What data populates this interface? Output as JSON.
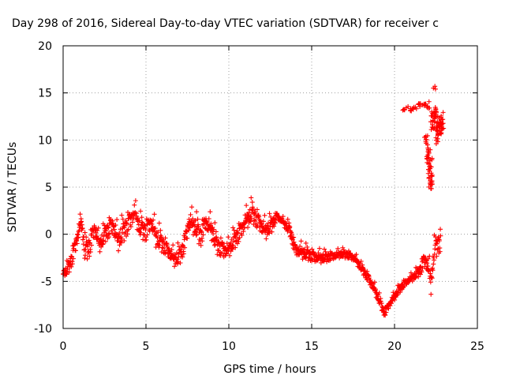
{
  "chart_data": {
    "type": "scatter",
    "title": "Day 298 of 2016, Sidereal Day-to-day VTEC variation (SDTVAR) for receiver c",
    "xlabel": "GPS time / hours",
    "ylabel": "SDTVAR / TECUs",
    "xlim": [
      0,
      25
    ],
    "ylim": [
      -10,
      20
    ],
    "xticks": [
      0,
      5,
      10,
      15,
      20,
      25
    ],
    "yticks": [
      -10,
      -5,
      0,
      5,
      10,
      15,
      20
    ],
    "grid": true,
    "marker": "+",
    "color": "#ff0000",
    "series": [
      {
        "name": "SDTVAR",
        "trace": [
          [
            0.0,
            -4.2,
            0.6
          ],
          [
            0.3,
            -3.5,
            0.8
          ],
          [
            0.6,
            -2.0,
            1.2
          ],
          [
            0.9,
            0.2,
            1.2
          ],
          [
            1.1,
            1.5,
            0.8
          ],
          [
            1.3,
            -1.5,
            1.4
          ],
          [
            1.6,
            -1.0,
            1.5
          ],
          [
            1.9,
            0.8,
            1.2
          ],
          [
            2.2,
            -1.0,
            1.0
          ],
          [
            2.6,
            0.5,
            1.2
          ],
          [
            3.0,
            1.2,
            1.4
          ],
          [
            3.3,
            -0.5,
            1.5
          ],
          [
            3.7,
            0.8,
            1.5
          ],
          [
            4.0,
            1.5,
            1.4
          ],
          [
            4.3,
            2.5,
            1.2
          ],
          [
            4.6,
            1.0,
            1.3
          ],
          [
            5.0,
            0.5,
            1.4
          ],
          [
            5.3,
            1.5,
            1.2
          ],
          [
            5.6,
            0.0,
            1.5
          ],
          [
            6.0,
            -0.8,
            1.2
          ],
          [
            6.3,
            -1.5,
            1.0
          ],
          [
            6.7,
            -2.5,
            1.0
          ],
          [
            7.0,
            -2.2,
            1.2
          ],
          [
            7.3,
            -1.0,
            1.2
          ],
          [
            7.6,
            1.5,
            1.4
          ],
          [
            8.0,
            1.0,
            1.3
          ],
          [
            8.3,
            0.0,
            1.5
          ],
          [
            8.6,
            1.5,
            1.2
          ],
          [
            9.0,
            0.5,
            1.4
          ],
          [
            9.3,
            -1.0,
            1.2
          ],
          [
            9.7,
            -1.5,
            1.2
          ],
          [
            10.0,
            -1.5,
            1.0
          ],
          [
            10.3,
            -0.5,
            1.2
          ],
          [
            10.7,
            0.5,
            1.2
          ],
          [
            11.0,
            1.5,
            1.2
          ],
          [
            11.4,
            2.5,
            1.3
          ],
          [
            11.8,
            1.5,
            1.2
          ],
          [
            12.2,
            0.5,
            1.2
          ],
          [
            12.6,
            1.2,
            1.0
          ],
          [
            12.9,
            2.0,
            0.5
          ],
          [
            13.2,
            1.5,
            0.4
          ],
          [
            13.7,
            0.5,
            0.8
          ],
          [
            14.0,
            -1.5,
            0.8
          ],
          [
            14.4,
            -1.8,
            0.9
          ],
          [
            14.8,
            -2.0,
            0.8
          ],
          [
            15.2,
            -2.3,
            0.8
          ],
          [
            15.6,
            -2.4,
            0.7
          ],
          [
            16.0,
            -2.3,
            0.6
          ],
          [
            16.4,
            -2.2,
            0.5
          ],
          [
            16.8,
            -2.0,
            0.5
          ],
          [
            17.2,
            -2.1,
            0.5
          ],
          [
            17.6,
            -2.5,
            0.5
          ],
          [
            18.0,
            -3.5,
            0.5
          ],
          [
            18.4,
            -4.5,
            0.6
          ],
          [
            18.8,
            -5.8,
            0.6
          ],
          [
            19.1,
            -7.0,
            0.6
          ],
          [
            19.4,
            -8.3,
            0.5
          ],
          [
            19.6,
            -7.6,
            0.5
          ],
          [
            19.9,
            -6.8,
            0.5
          ],
          [
            20.2,
            -6.0,
            0.5
          ],
          [
            20.5,
            -5.3,
            0.5
          ],
          [
            20.8,
            -4.9,
            0.4
          ],
          [
            21.1,
            -4.5,
            0.5
          ],
          [
            21.4,
            -4.0,
            0.6
          ],
          [
            21.6,
            -3.5,
            0.8
          ],
          [
            21.8,
            -2.5,
            1.0
          ],
          [
            22.0,
            -3.0,
            1.5
          ],
          [
            22.2,
            -5.0,
            1.5
          ],
          [
            22.4,
            -1.5,
            1.2
          ],
          [
            22.6,
            -0.8,
            1.5
          ],
          [
            22.8,
            -0.5,
            1.5
          ]
        ],
        "clusters": [
          [
            20.6,
            13.2,
            0.3
          ],
          [
            20.9,
            13.3,
            0.3
          ],
          [
            21.2,
            13.5,
            0.3
          ],
          [
            21.5,
            13.8,
            0.3
          ],
          [
            21.8,
            13.9,
            0.3
          ],
          [
            22.0,
            13.7,
            0.4
          ],
          [
            21.9,
            10.0,
            0.5
          ],
          [
            22.05,
            8.5,
            1.0
          ],
          [
            22.15,
            7.0,
            1.2
          ],
          [
            22.2,
            5.5,
            0.8
          ],
          [
            22.3,
            12.0,
            1.0
          ],
          [
            22.5,
            12.8,
            1.0
          ],
          [
            22.7,
            11.5,
            1.2
          ],
          [
            22.85,
            12.0,
            1.0
          ],
          [
            22.6,
            10.5,
            1.0
          ],
          [
            22.45,
            15.6,
            0.2
          ]
        ]
      }
    ]
  }
}
